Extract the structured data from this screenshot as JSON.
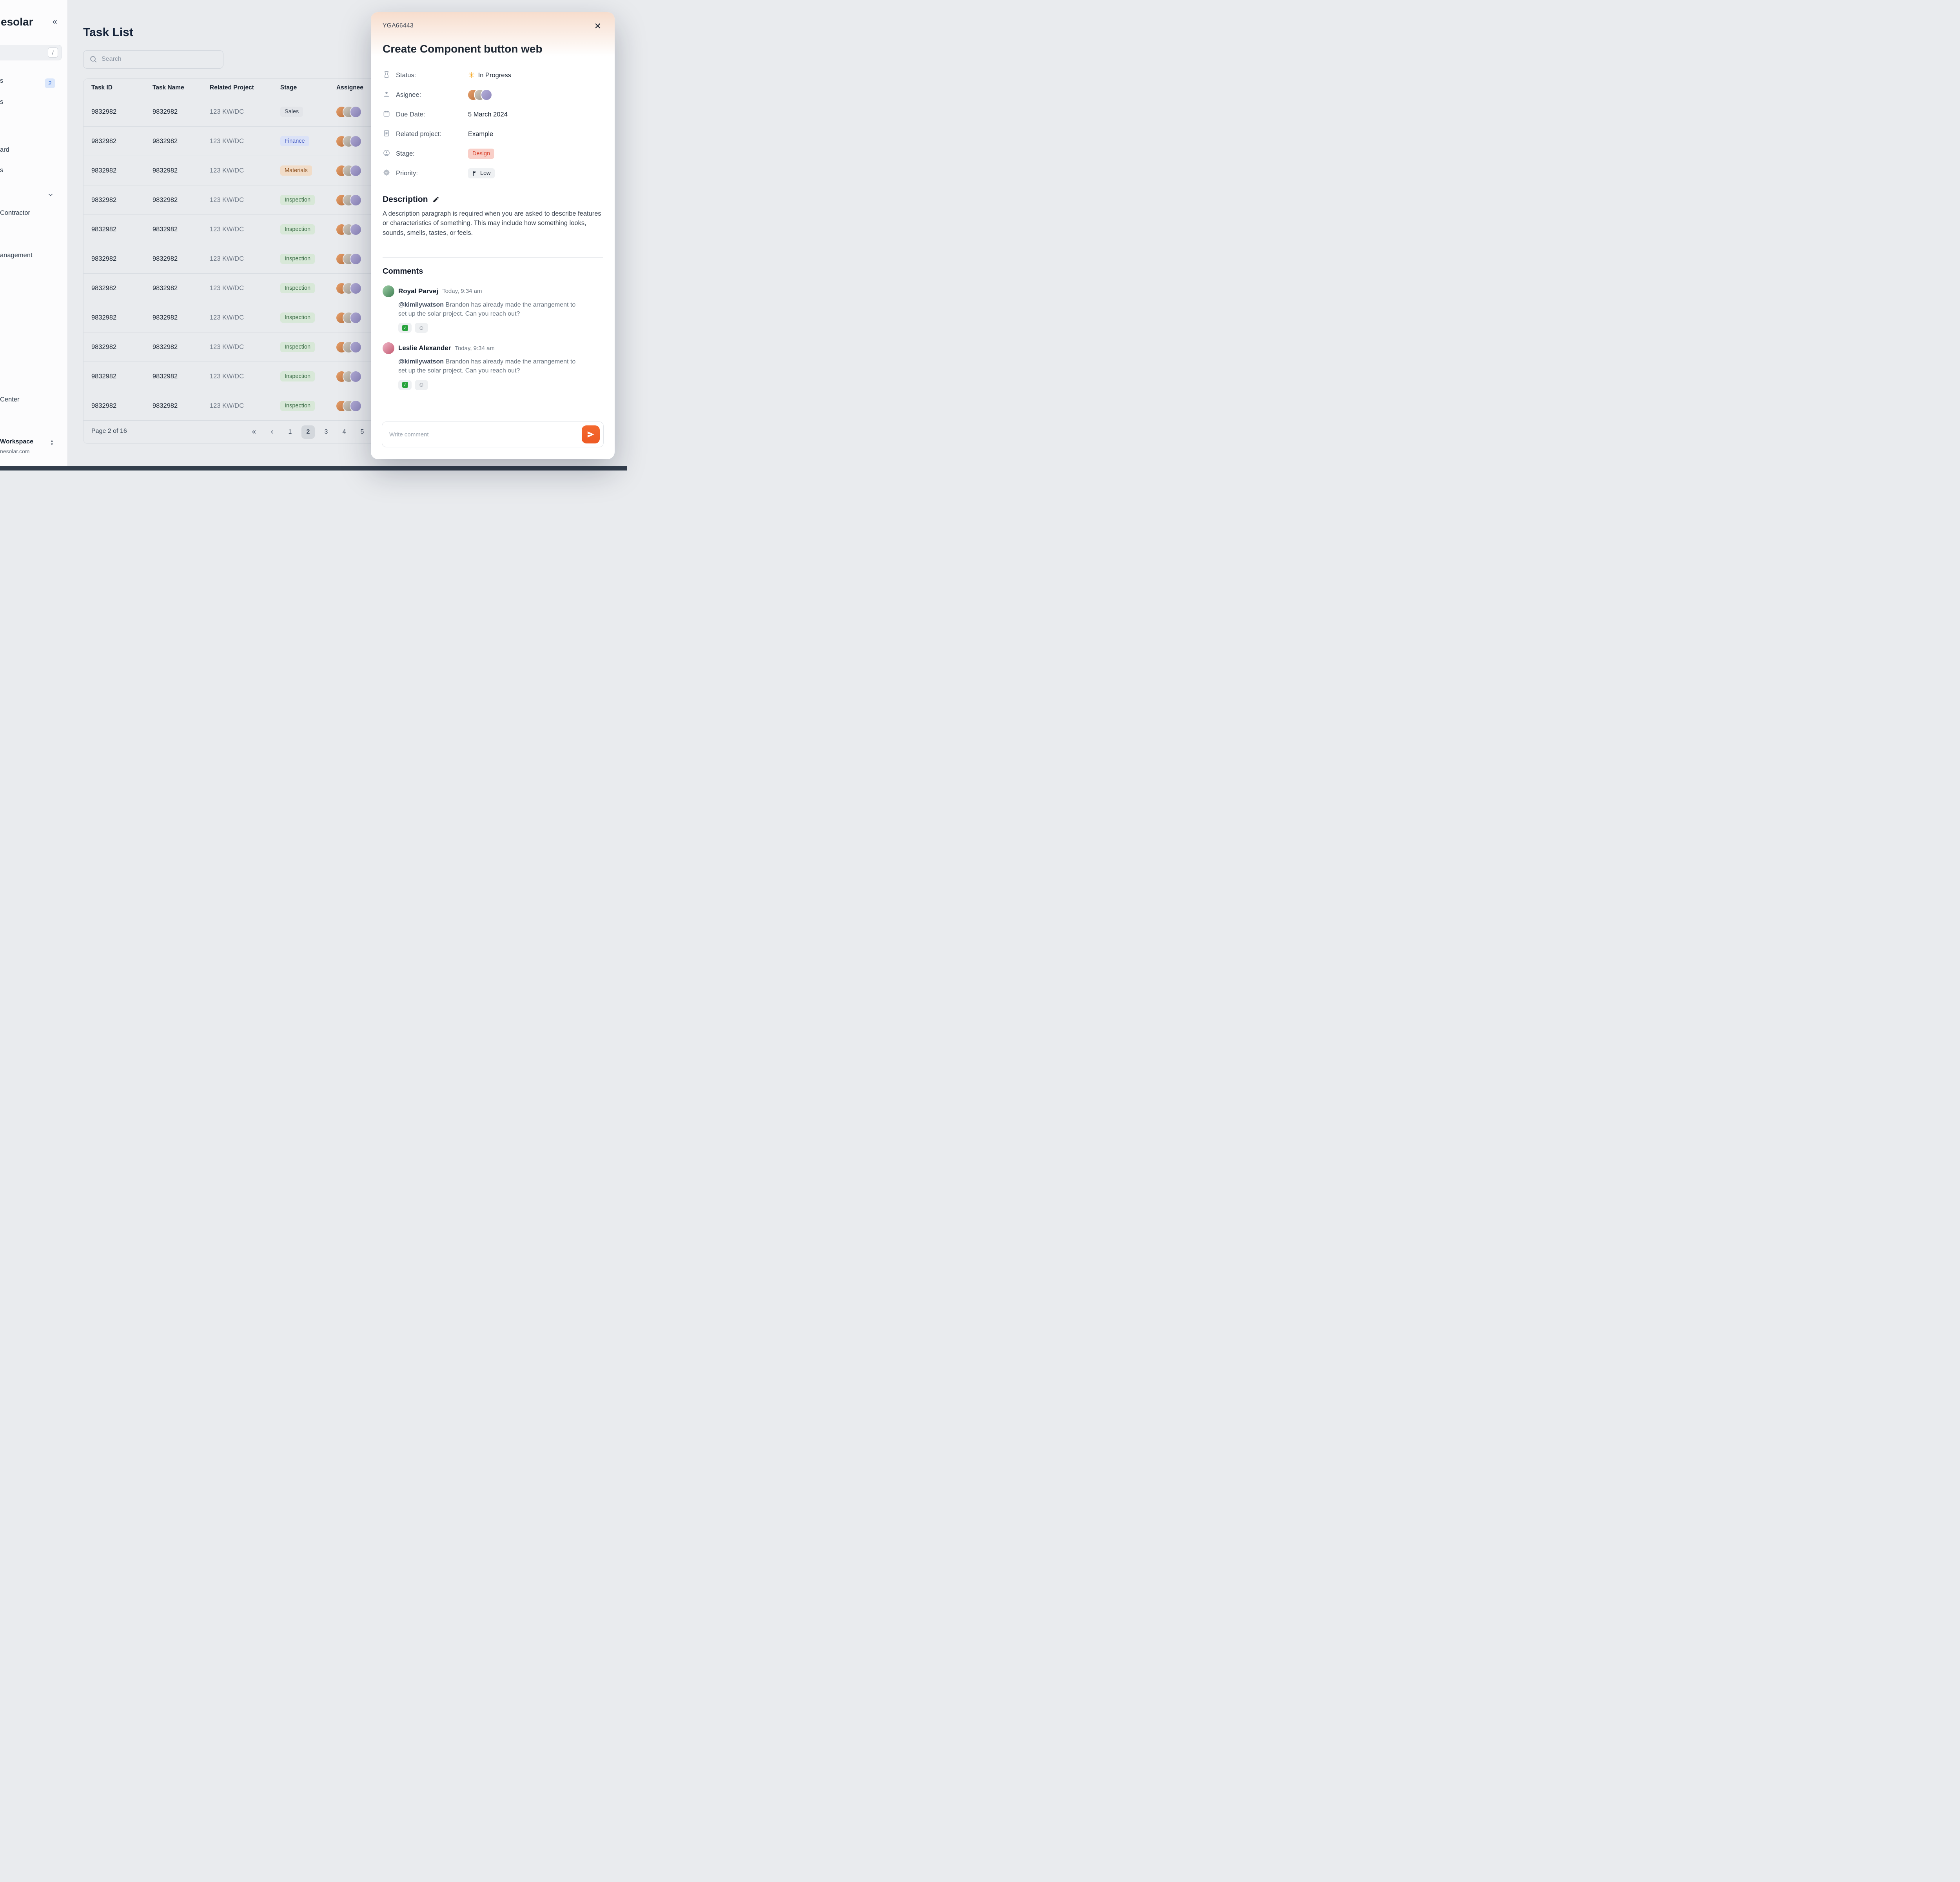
{
  "app": {
    "logo": "esolar"
  },
  "icons": {
    "collapse": "«",
    "pagination_first": "«",
    "pagination_prev": "‹",
    "close": "✕",
    "status_spark": "✳",
    "smiley": "☺",
    "caret_up": "▲",
    "caret_down": "▼",
    "check": "✓"
  },
  "sidebar": {
    "shortcut_key": "/",
    "items": [
      {
        "label": "s",
        "badge": "2"
      },
      {
        "label": "s"
      },
      {
        "label": "ard"
      },
      {
        "label": "s"
      },
      {
        "label": "Contractor"
      },
      {
        "label": "anagement"
      },
      {
        "label": "Center"
      }
    ],
    "workspace": {
      "name": "Workspace",
      "domain": "nesolar.com"
    }
  },
  "header": {
    "title": "Task List"
  },
  "search": {
    "placeholder": "Search"
  },
  "table": {
    "columns": [
      "Task ID",
      "Task Name",
      "Related Project",
      "Stage",
      "Assignee"
    ],
    "rows": [
      {
        "task_id": "9832982",
        "task_name": "9832982",
        "related_project": "123 KW/DC",
        "stage": "Sales",
        "stage_color": "gray"
      },
      {
        "task_id": "9832982",
        "task_name": "9832982",
        "related_project": "123 KW/DC",
        "stage": "Finance",
        "stage_color": "blue"
      },
      {
        "task_id": "9832982",
        "task_name": "9832982",
        "related_project": "123 KW/DC",
        "stage": "Materials",
        "stage_color": "orange"
      },
      {
        "task_id": "9832982",
        "task_name": "9832982",
        "related_project": "123 KW/DC",
        "stage": "Inspection",
        "stage_color": "green"
      },
      {
        "task_id": "9832982",
        "task_name": "9832982",
        "related_project": "123 KW/DC",
        "stage": "Inspection",
        "stage_color": "green"
      },
      {
        "task_id": "9832982",
        "task_name": "9832982",
        "related_project": "123 KW/DC",
        "stage": "Inspection",
        "stage_color": "green"
      },
      {
        "task_id": "9832982",
        "task_name": "9832982",
        "related_project": "123 KW/DC",
        "stage": "Inspection",
        "stage_color": "green"
      },
      {
        "task_id": "9832982",
        "task_name": "9832982",
        "related_project": "123 KW/DC",
        "stage": "Inspection",
        "stage_color": "green"
      },
      {
        "task_id": "9832982",
        "task_name": "9832982",
        "related_project": "123 KW/DC",
        "stage": "Inspection",
        "stage_color": "green"
      },
      {
        "task_id": "9832982",
        "task_name": "9832982",
        "related_project": "123 KW/DC",
        "stage": "Inspection",
        "stage_color": "green"
      },
      {
        "task_id": "9832982",
        "task_name": "9832982",
        "related_project": "123 KW/DC",
        "stage": "Inspection",
        "stage_color": "green"
      }
    ]
  },
  "pagination": {
    "label": "Page 2 of 16",
    "pages": [
      "1",
      "2",
      "3",
      "4",
      "5"
    ],
    "active": "2"
  },
  "modal": {
    "id": "YGA66443",
    "title": "Create Component button web",
    "fields": [
      {
        "label": "Status:",
        "value": "In Progress"
      },
      {
        "label": "Asignee:",
        "value": ""
      },
      {
        "label": "Due Date:",
        "value": "5 March 2024"
      },
      {
        "label": "Related project:",
        "value": "Example"
      },
      {
        "label": "Stage:",
        "value": "Design"
      },
      {
        "label": "Priority:",
        "value": "Low"
      }
    ],
    "description": {
      "heading": "Description",
      "text": "A description paragraph is required when you are asked to describe features or characteristics of something. This may include how something looks, sounds, smells, tastes, or feels."
    },
    "comments": {
      "heading": "Comments",
      "items": [
        {
          "author": "Royal Parvej",
          "time": "Today, 9:34 am",
          "mention": "@kimilywatson",
          "text": " Brandon has already made the arrangement to set up the solar project. Can you reach out?"
        },
        {
          "author": "Leslie Alexander",
          "time": "Today, 9:34 am",
          "mention": "@kimilywatson",
          "text": " Brandon has already made the arrangement to set up the solar project. Can you reach out?"
        }
      ]
    },
    "comment_input": {
      "placeholder": "Write comment"
    }
  },
  "colors": {
    "accent_orange": "#EE5A24",
    "status_spark": "#F59E0B",
    "badge_gray_bg": "#E3E5E9",
    "badge_blue_bg": "#DBE2F7",
    "badge_orange_bg": "#F1DCC8",
    "badge_green_bg": "#D8E8D8",
    "badge_red_bg": "#F9CFC8",
    "sidebar_badge_bg": "#DBE7FB",
    "sidebar_badge_text": "#2D6CDF",
    "active_page_bg": "#D3D7DC",
    "reaction_check_green": "#27A23C"
  }
}
